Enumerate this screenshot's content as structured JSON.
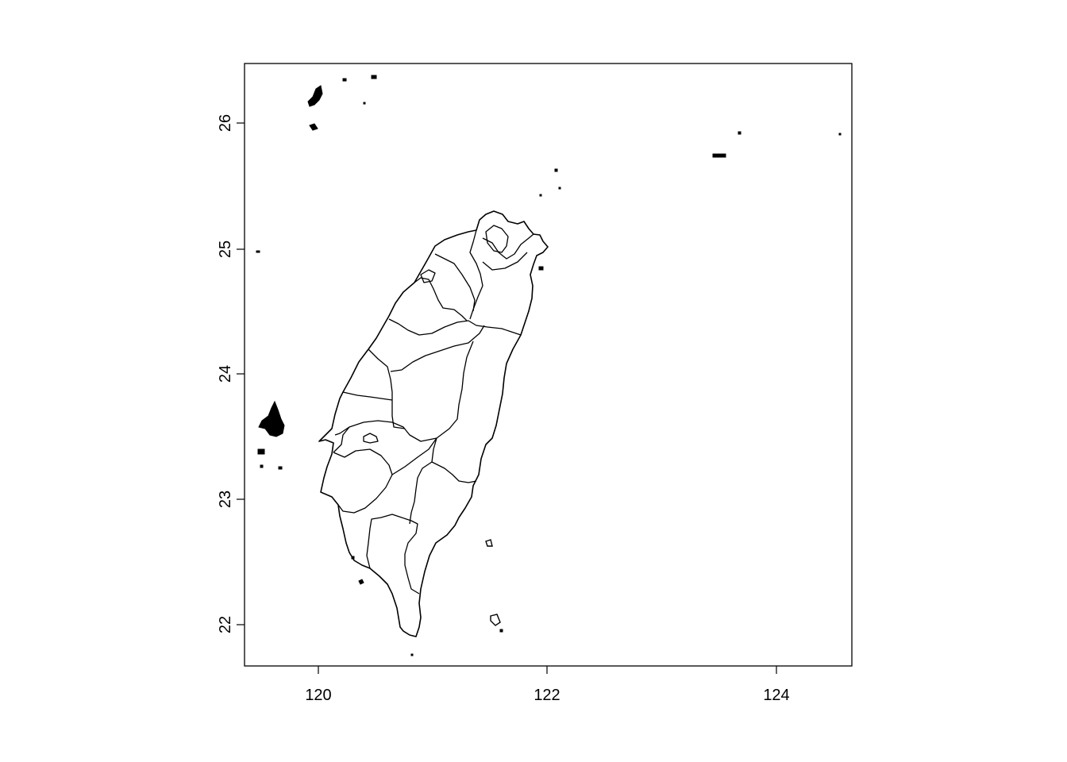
{
  "map": {
    "x_ticks": [
      "120",
      "122",
      "124"
    ],
    "y_ticks": [
      "22",
      "23",
      "24",
      "25",
      "26"
    ],
    "xlim": [
      119.3,
      124.65
    ],
    "ylim": [
      21.65,
      26.5
    ],
    "frame": "box",
    "stroke_color": "#000000",
    "background": "#ffffff"
  }
}
